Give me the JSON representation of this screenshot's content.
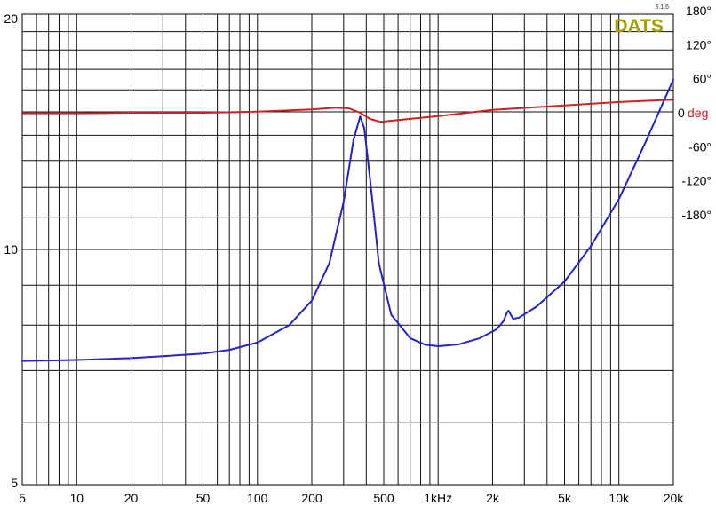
{
  "brand": {
    "label": "DATS",
    "version": "3.1.6",
    "color": "#a0a000"
  },
  "chart_data": {
    "type": "line",
    "title": "",
    "xlabel": "",
    "ylabel": "",
    "x_scale": "log",
    "y_scale": "log",
    "xlim": [
      5,
      20000
    ],
    "ylim": [
      5,
      20
    ],
    "y2lim": [
      -360,
      180
    ],
    "grid": true,
    "x_ticks": [
      "5",
      "10",
      "20",
      "50",
      "100",
      "200",
      "500",
      "1kHz",
      "2k",
      "5k",
      "10k",
      "20k"
    ],
    "y_ticks": [
      "20",
      "10",
      "5"
    ],
    "y2_ticks": [
      "180°",
      "120°",
      "60°",
      "0",
      "-60°",
      "-120°",
      "-180°"
    ],
    "y2_unit_label": "deg",
    "series": [
      {
        "key": "impedance",
        "color": "#2323c8",
        "axis": "left",
        "points": [
          [
            5,
            7.2
          ],
          [
            10,
            7.22
          ],
          [
            20,
            7.26
          ],
          [
            30,
            7.3
          ],
          [
            50,
            7.36
          ],
          [
            70,
            7.44
          ],
          [
            100,
            7.6
          ],
          [
            150,
            8.0
          ],
          [
            200,
            8.6
          ],
          [
            250,
            9.6
          ],
          [
            300,
            11.5
          ],
          [
            340,
            13.8
          ],
          [
            370,
            14.8
          ],
          [
            390,
            14.3
          ],
          [
            420,
            12.3
          ],
          [
            470,
            9.6
          ],
          [
            550,
            8.25
          ],
          [
            700,
            7.7
          ],
          [
            850,
            7.55
          ],
          [
            1000,
            7.52
          ],
          [
            1300,
            7.56
          ],
          [
            1700,
            7.7
          ],
          [
            2100,
            7.9
          ],
          [
            2300,
            8.1
          ],
          [
            2400,
            8.3
          ],
          [
            2450,
            8.35
          ],
          [
            2600,
            8.15
          ],
          [
            2800,
            8.18
          ],
          [
            3500,
            8.45
          ],
          [
            5000,
            9.1
          ],
          [
            7000,
            10.1
          ],
          [
            10000,
            11.6
          ],
          [
            14000,
            13.7
          ],
          [
            20000,
            16.5
          ]
        ]
      },
      {
        "key": "phase",
        "color": "#cc2222",
        "axis": "right",
        "points": [
          [
            5,
            -1
          ],
          [
            10,
            -1
          ],
          [
            20,
            0
          ],
          [
            50,
            0
          ],
          [
            100,
            2
          ],
          [
            200,
            6
          ],
          [
            270,
            9
          ],
          [
            320,
            8
          ],
          [
            370,
            0
          ],
          [
            420,
            -11
          ],
          [
            480,
            -16
          ],
          [
            600,
            -13
          ],
          [
            1000,
            -6
          ],
          [
            2000,
            5
          ],
          [
            5000,
            13
          ],
          [
            10000,
            19
          ],
          [
            20000,
            23
          ]
        ]
      }
    ]
  }
}
